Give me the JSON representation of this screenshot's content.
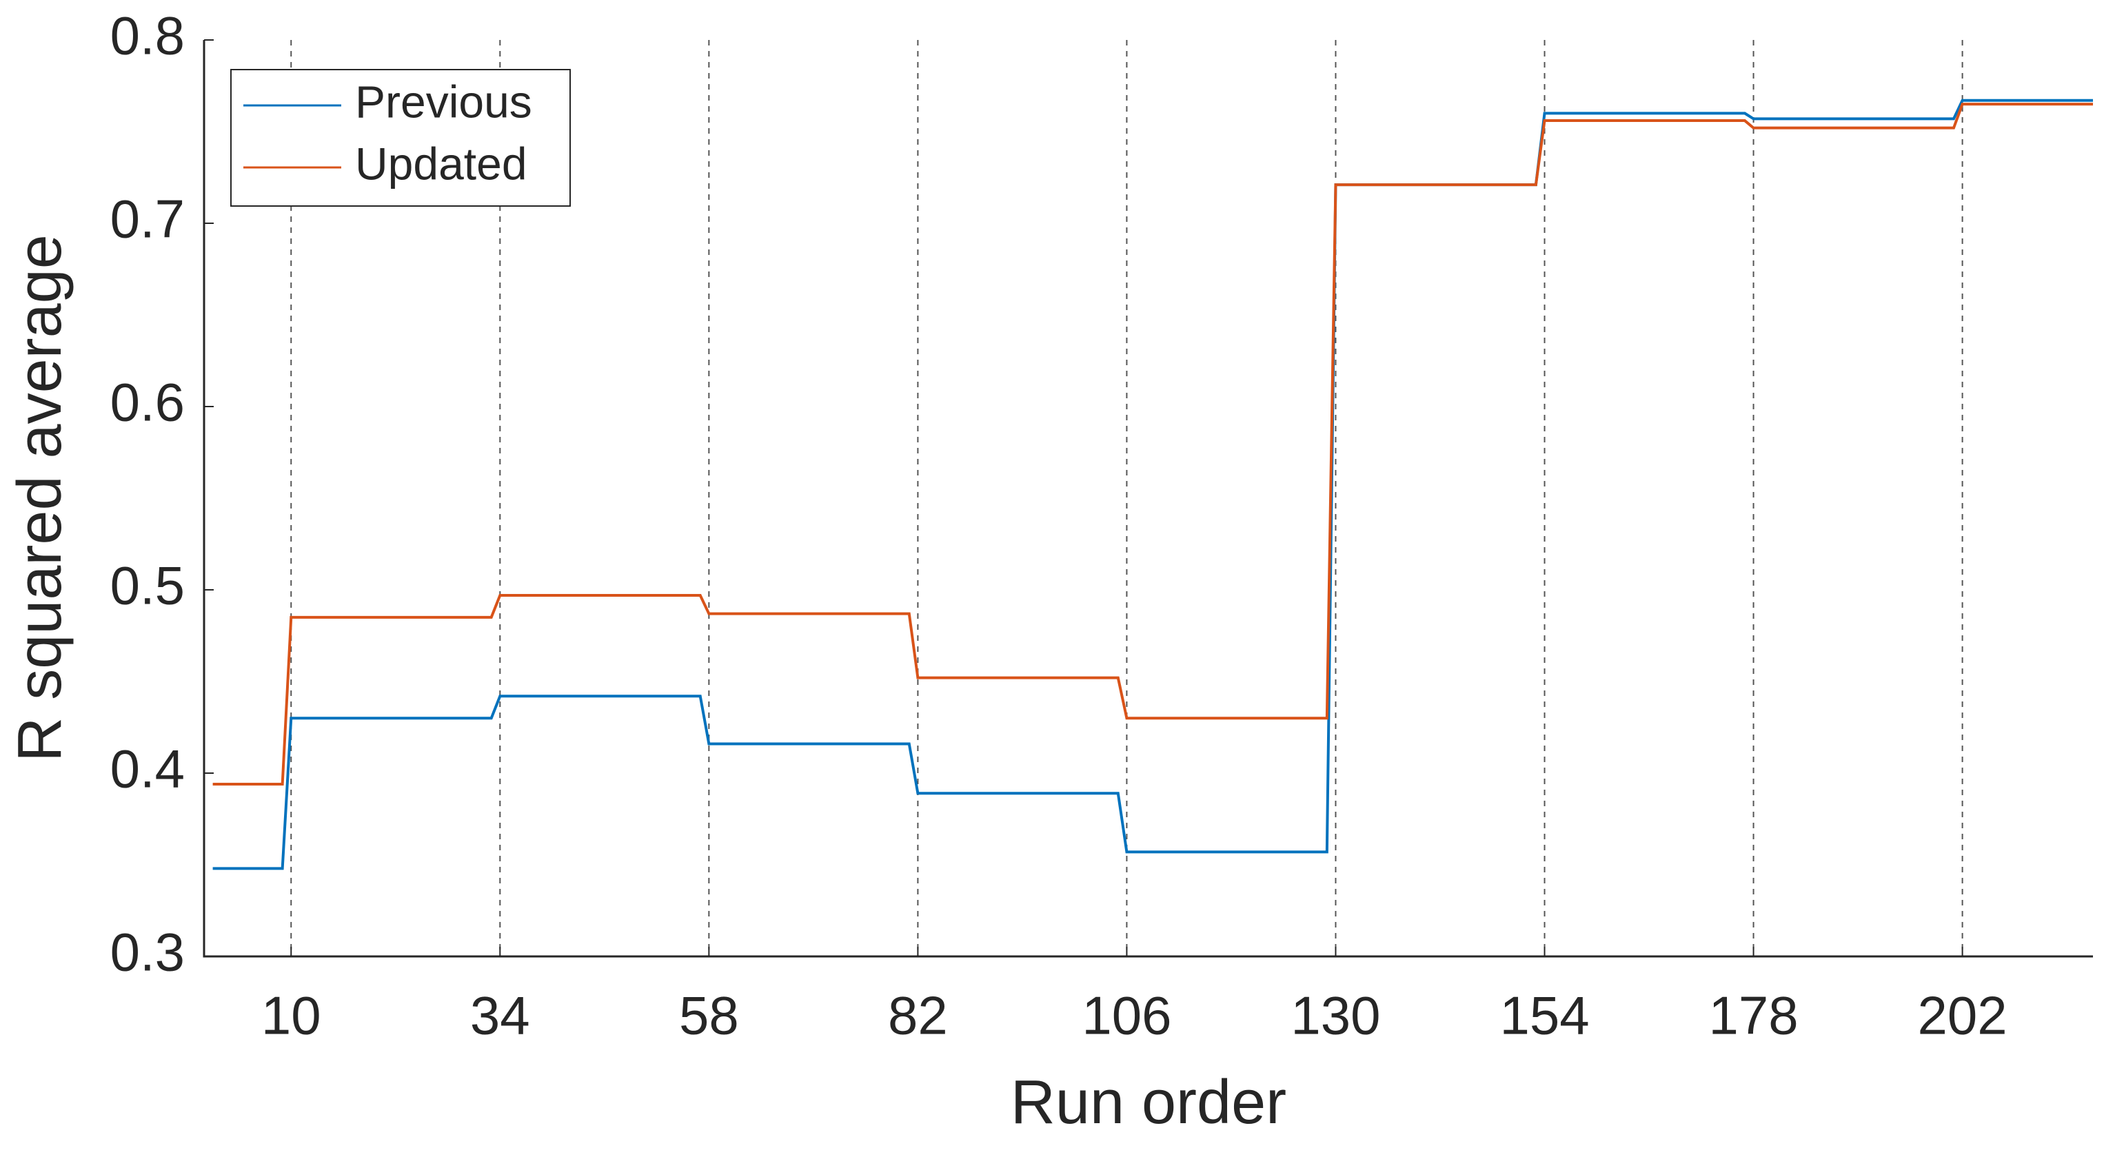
{
  "chart_data": {
    "type": "line",
    "xlabel": "Run order",
    "ylabel": "R squared average",
    "x": [
      1,
      9,
      10,
      33,
      34,
      57,
      58,
      81,
      82,
      105,
      106,
      129,
      130,
      153,
      154,
      177,
      178,
      201,
      202,
      217
    ],
    "series": [
      {
        "name": "Previous",
        "color": "#0072bd",
        "values": [
          0.348,
          0.348,
          0.43,
          0.43,
          0.442,
          0.442,
          0.416,
          0.416,
          0.389,
          0.389,
          0.357,
          0.357,
          0.721,
          0.721,
          0.76,
          0.76,
          0.757,
          0.757,
          0.767,
          0.767
        ]
      },
      {
        "name": "Updated",
        "color": "#d95319",
        "values": [
          0.394,
          0.394,
          0.485,
          0.485,
          0.497,
          0.497,
          0.487,
          0.487,
          0.452,
          0.452,
          0.43,
          0.43,
          0.721,
          0.721,
          0.756,
          0.756,
          0.752,
          0.752,
          0.765,
          0.765
        ]
      }
    ],
    "xlim": [
      0,
      217
    ],
    "xticks": [
      10,
      34,
      58,
      82,
      106,
      130,
      154,
      178,
      202
    ],
    "ylim": [
      0.3,
      0.8
    ],
    "yticks": [
      0.3,
      0.4,
      0.5,
      0.6,
      0.7,
      0.8
    ],
    "grid": "x",
    "legend": "upper left"
  }
}
